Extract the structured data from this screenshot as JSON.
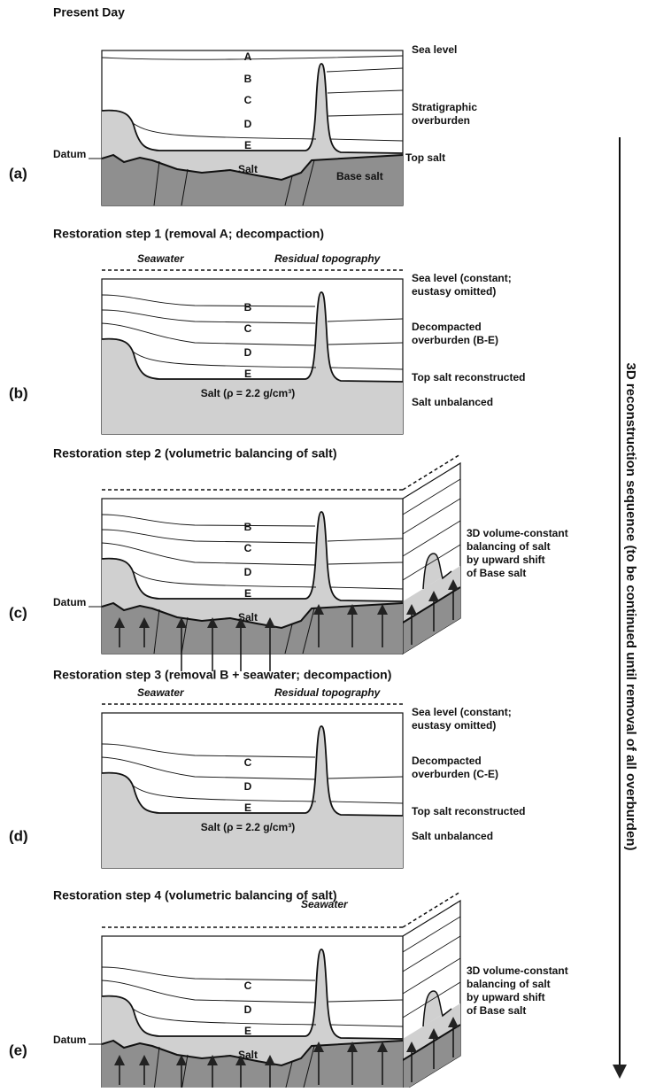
{
  "sequence_label": "3D reconstruction sequence (to be continued until removal of all overburden)",
  "panels": [
    {
      "tag": "(a)",
      "title": "Present Day",
      "layers": [
        "A",
        "B",
        "C",
        "D",
        "E"
      ],
      "salt": "Salt",
      "datum": "Datum",
      "notes": [
        [
          "Sea level"
        ],
        [
          "Stratigraphic",
          "overburden"
        ],
        [
          "Top salt"
        ],
        [
          "Base salt"
        ]
      ]
    },
    {
      "tag": "(b)",
      "title": "Restoration step 1 (removal A; decompaction)",
      "seawater": "Seawater",
      "residual": "Residual topography",
      "layers": [
        "B",
        "C",
        "D",
        "E"
      ],
      "salt": "Salt (ρ = 2.2 g/cm³)",
      "notes": [
        [
          "Sea level (constant;",
          "eustasy omitted)"
        ],
        [
          "Decompacted",
          "overburden (B-E)"
        ],
        [
          "Top salt reconstructed"
        ],
        [
          "Salt unbalanced"
        ]
      ]
    },
    {
      "tag": "(c)",
      "title": "Restoration step 2 (volumetric balancing of salt)",
      "layers": [
        "B",
        "C",
        "D",
        "E"
      ],
      "salt": "Salt",
      "datum": "Datum",
      "notes": [
        [
          "3D volume-constant",
          "balancing of salt",
          "by upward shift",
          "of Base salt"
        ]
      ]
    },
    {
      "tag": "(d)",
      "title": "Restoration step 3 (removal B + seawater; decompaction)",
      "seawater": "Seawater",
      "residual": "Residual topography",
      "layers": [
        "C",
        "D",
        "E"
      ],
      "salt": "Salt (ρ = 2.2 g/cm³)",
      "notes": [
        [
          "Sea level (constant;",
          "eustasy omitted)"
        ],
        [
          "Decompacted",
          "overburden (C-E)"
        ],
        [
          "Top salt reconstructed"
        ],
        [
          "Salt unbalanced"
        ]
      ]
    },
    {
      "tag": "(e)",
      "title": "Restoration step 4 (volumetric balancing of salt)",
      "seawater": "Seawater",
      "layers": [
        "C",
        "D",
        "E"
      ],
      "salt": "Salt",
      "datum": "Datum",
      "notes": [
        [
          "3D volume-constant",
          "balancing of salt",
          "by upward shift",
          "of Base salt"
        ]
      ]
    }
  ]
}
